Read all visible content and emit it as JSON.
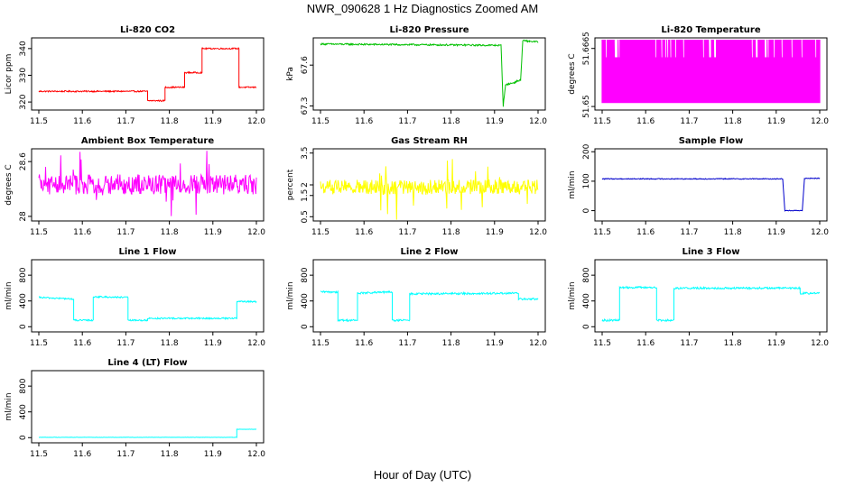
{
  "page_title": "NWR_090628  1 Hz Diagnostics Zoomed AM",
  "x_axis_label": "Hour of Day (UTC)",
  "chart_data": [
    {
      "type": "line",
      "title": "Li-820 CO2",
      "ylabel": "Licor ppm",
      "color": "#ff0000",
      "xlim": [
        11.5,
        12.0
      ],
      "xticks": [
        11.5,
        11.6,
        11.7,
        11.8,
        11.9,
        12.0
      ],
      "ylim": [
        317,
        344
      ],
      "yticks": [
        320,
        330,
        340
      ],
      "series": [
        {
          "x": [
            11.5,
            11.75,
            11.75,
            11.79,
            11.79,
            11.835,
            11.835,
            11.875,
            11.875,
            11.96,
            11.96,
            12.0
          ],
          "y": [
            324,
            324,
            320.5,
            320.5,
            325.5,
            325.5,
            331,
            331,
            340,
            340,
            325.5,
            325.5
          ],
          "noise": 0.25
        }
      ]
    },
    {
      "type": "line",
      "title": "Li-820 Pressure",
      "ylabel": "kPa",
      "color": "#00c000",
      "xlim": [
        11.5,
        12.0
      ],
      "xticks": [
        11.5,
        11.6,
        11.7,
        11.8,
        11.9,
        12.0
      ],
      "ylim": [
        67.27,
        67.8
      ],
      "yticks": [
        67.3,
        67.6
      ],
      "series": [
        {
          "x": [
            11.5,
            11.6,
            11.7,
            11.8,
            11.915,
            11.92,
            11.925,
            11.93,
            11.945,
            11.95,
            11.96,
            11.965,
            11.98,
            12.0
          ],
          "y": [
            67.755,
            67.752,
            67.75,
            67.748,
            67.745,
            67.3,
            67.45,
            67.46,
            67.47,
            67.48,
            67.49,
            67.78,
            67.775,
            67.77
          ],
          "noise": 0.006
        }
      ]
    },
    {
      "type": "line",
      "title": "Li-820 Temperature",
      "ylabel": "degrees C",
      "color": "#ff00ff",
      "xlim": [
        11.5,
        12.0
      ],
      "xticks": [
        11.5,
        11.6,
        11.7,
        11.8,
        11.9,
        12.0
      ],
      "ylim": [
        51.649,
        51.6695
      ],
      "yticks": [
        51.65,
        51.6665
      ],
      "series": [
        {
          "x": [
            11.5,
            12.0
          ],
          "y": [
            51.651,
            51.669
          ],
          "style": "dense"
        }
      ]
    },
    {
      "type": "line",
      "title": "Ambient Box Temperature",
      "ylabel": "degrees C",
      "color": "#ff00ff",
      "xlim": [
        11.5,
        12.0
      ],
      "xticks": [
        11.5,
        11.6,
        11.7,
        11.8,
        11.9,
        12.0
      ],
      "ylim": [
        27.95,
        28.74
      ],
      "yticks": [
        28.0,
        28.6
      ],
      "series": [
        {
          "x": [
            11.5,
            12.0
          ],
          "y": [
            28.35,
            28.35
          ],
          "noise": 0.11,
          "spikes": 0.32
        }
      ]
    },
    {
      "type": "line",
      "title": "Gas Stream RH",
      "ylabel": "percent",
      "color": "#ffff00",
      "xlim": [
        11.5,
        12.0
      ],
      "xticks": [
        11.5,
        11.6,
        11.7,
        11.8,
        11.9,
        12.0
      ],
      "ylim": [
        0.3,
        3.7
      ],
      "yticks": [
        0.5,
        1.5,
        2.0,
        3.5
      ],
      "series": [
        {
          "x": [
            11.5,
            12.0
          ],
          "y": [
            1.9,
            1.9
          ],
          "noise": 0.35,
          "spikes": 1.6
        }
      ]
    },
    {
      "type": "line",
      "title": "Sample Flow",
      "ylabel": "ml/min",
      "color": "#0000cc",
      "xlim": [
        11.5,
        12.0
      ],
      "xticks": [
        11.5,
        11.6,
        11.7,
        11.8,
        11.9,
        12.0
      ],
      "ylim": [
        -35,
        210
      ],
      "yticks": [
        0,
        100,
        200
      ],
      "series": [
        {
          "x": [
            11.5,
            11.915,
            11.92,
            11.96,
            11.965,
            12.0
          ],
          "y": [
            108,
            108,
            0,
            0,
            110,
            110
          ],
          "noise": 1.5
        }
      ]
    },
    {
      "type": "line",
      "title": "Line 1 Flow",
      "ylabel": "ml/min",
      "color": "#00ffff",
      "xlim": [
        11.5,
        12.0
      ],
      "xticks": [
        11.5,
        11.6,
        11.7,
        11.8,
        11.9,
        12.0
      ],
      "ylim": [
        -80,
        1040
      ],
      "yticks": [
        0,
        400,
        800
      ],
      "series": [
        {
          "x": [
            11.5,
            11.58,
            11.58,
            11.625,
            11.625,
            11.705,
            11.705,
            11.75,
            11.75,
            11.955,
            11.955,
            12.0
          ],
          "y": [
            455,
            430,
            100,
            100,
            465,
            455,
            100,
            100,
            130,
            130,
            390,
            390
          ],
          "noise": 12
        }
      ]
    },
    {
      "type": "line",
      "title": "Line 2 Flow",
      "ylabel": "ml/min",
      "color": "#00ffff",
      "xlim": [
        11.5,
        12.0
      ],
      "xticks": [
        11.5,
        11.6,
        11.7,
        11.8,
        11.9,
        12.0
      ],
      "ylim": [
        -80,
        1040
      ],
      "yticks": [
        0,
        400,
        800
      ],
      "series": [
        {
          "x": [
            11.5,
            11.54,
            11.54,
            11.585,
            11.585,
            11.665,
            11.665,
            11.705,
            11.705,
            11.955,
            11.955,
            12.0
          ],
          "y": [
            540,
            540,
            100,
            100,
            520,
            540,
            100,
            100,
            510,
            520,
            430,
            430
          ],
          "noise": 15
        }
      ]
    },
    {
      "type": "line",
      "title": "Line 3 Flow",
      "ylabel": "ml/min",
      "color": "#00ffff",
      "xlim": [
        11.5,
        12.0
      ],
      "xticks": [
        11.5,
        11.6,
        11.7,
        11.8,
        11.9,
        12.0
      ],
      "ylim": [
        -80,
        1040
      ],
      "yticks": [
        0,
        400,
        800
      ],
      "series": [
        {
          "x": [
            11.5,
            11.54,
            11.54,
            11.625,
            11.625,
            11.665,
            11.665,
            11.955,
            11.955,
            12.0
          ],
          "y": [
            100,
            100,
            610,
            610,
            100,
            100,
            600,
            600,
            520,
            520
          ],
          "noise": 15
        }
      ]
    },
    {
      "type": "line",
      "title": "Line 4 (LT) Flow",
      "ylabel": "ml/min",
      "color": "#00ffff",
      "xlim": [
        11.5,
        12.0
      ],
      "xticks": [
        11.5,
        11.6,
        11.7,
        11.8,
        11.9,
        12.0
      ],
      "ylim": [
        -80,
        1040
      ],
      "yticks": [
        0,
        400,
        800
      ],
      "series": [
        {
          "x": [
            11.5,
            11.955,
            11.955,
            12.0
          ],
          "y": [
            5,
            5,
            130,
            130
          ],
          "noise": 2
        }
      ]
    }
  ]
}
